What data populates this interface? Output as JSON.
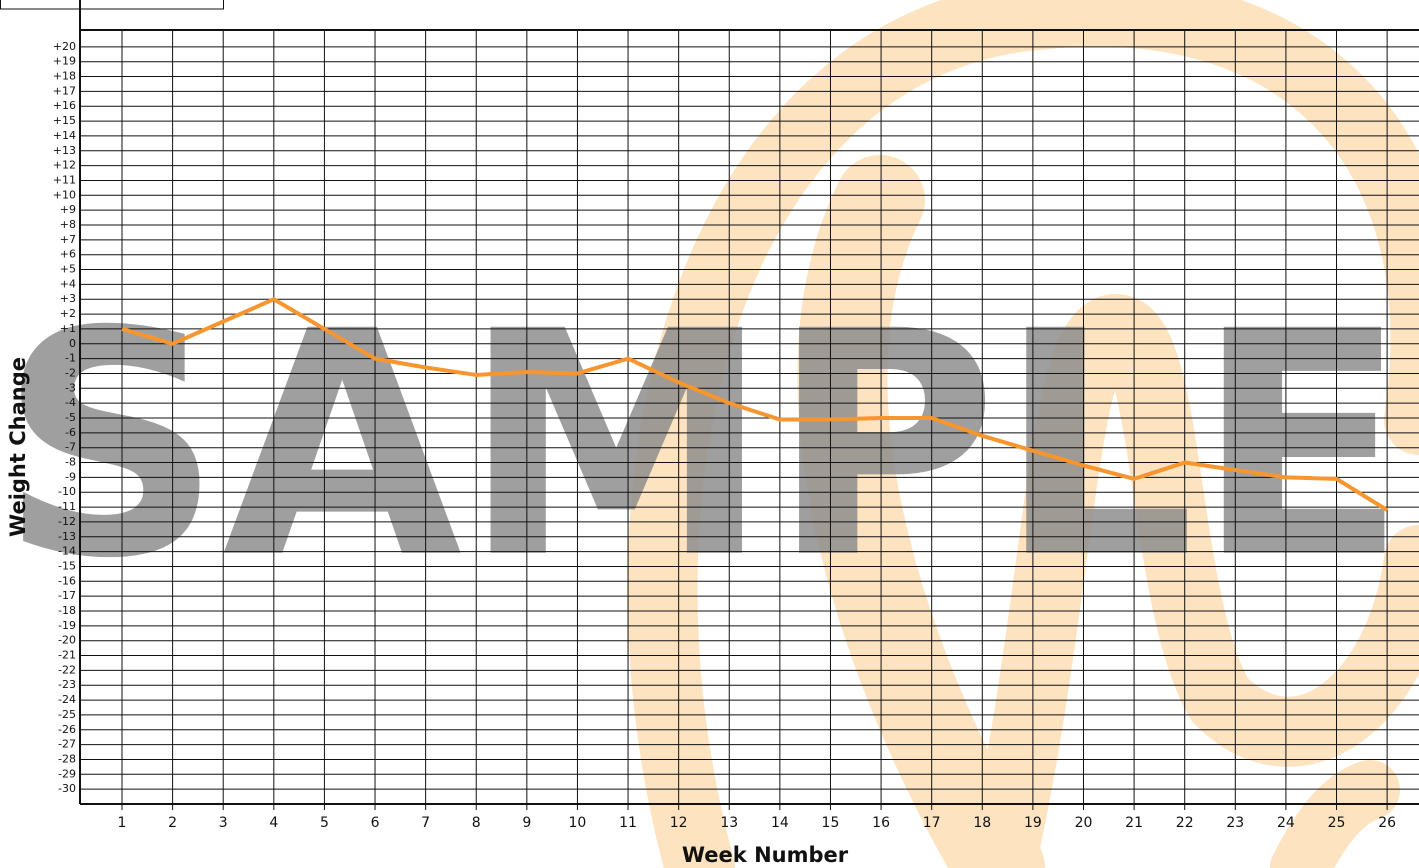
{
  "chart_data": {
    "type": "line",
    "watermark": "SAMPLE",
    "x_label": "Week Number",
    "y_label": "Weight Change",
    "x": [
      1,
      2,
      3,
      4,
      5,
      6,
      7,
      8,
      9,
      10,
      11,
      12,
      13,
      14,
      15,
      16,
      17,
      18,
      19,
      20,
      21,
      22,
      23,
      24,
      25,
      26
    ],
    "series": [
      {
        "color": "#f7952f",
        "values": [
          1,
          0,
          1.5,
          3,
          1,
          -1,
          -1.6,
          -2.1,
          -1.9,
          -2,
          -1,
          -2.6,
          -4,
          -5.1,
          -5.1,
          -5,
          -5,
          -6.2,
          -7.2,
          -8.2,
          -9.1,
          -8,
          -8.5,
          -9,
          -9.1,
          -11.2
        ]
      }
    ],
    "xlim": [
      0.17,
      26.63
    ],
    "ylim": [
      -31,
      21
    ],
    "xticks": [
      1,
      2,
      3,
      4,
      5,
      6,
      7,
      8,
      9,
      10,
      11,
      12,
      13,
      14,
      15,
      16,
      17,
      18,
      19,
      20,
      21,
      22,
      23,
      24,
      25,
      26
    ],
    "yticks": [
      {
        "value": 20,
        "label": "+20"
      },
      {
        "value": 19,
        "label": "+19"
      },
      {
        "value": 18,
        "label": "+18"
      },
      {
        "value": 17,
        "label": "+17"
      },
      {
        "value": 16,
        "label": "+16"
      },
      {
        "value": 15,
        "label": "+15"
      },
      {
        "value": 14,
        "label": "+14"
      },
      {
        "value": 13,
        "label": "+13"
      },
      {
        "value": 12,
        "label": "+12"
      },
      {
        "value": 11,
        "label": "+11"
      },
      {
        "value": 10,
        "label": "+10"
      },
      {
        "value": 9,
        "label": "+9"
      },
      {
        "value": 8,
        "label": "+8"
      },
      {
        "value": 7,
        "label": "+7"
      },
      {
        "value": 6,
        "label": "+6"
      },
      {
        "value": 5,
        "label": "+5"
      },
      {
        "value": 4,
        "label": "+4"
      },
      {
        "value": 3,
        "label": "+3"
      },
      {
        "value": 2,
        "label": "+2"
      },
      {
        "value": 1,
        "label": "+1"
      },
      0,
      -1,
      -2,
      -3,
      -4,
      -5,
      -6,
      -7,
      -8,
      -9,
      -10,
      -11,
      -12,
      -13,
      -14,
      -15,
      -16,
      -17,
      -18,
      -19,
      -20,
      -21,
      -22,
      -23,
      -24,
      -25,
      -26,
      -27,
      -28,
      -29,
      -30
    ],
    "grid": true
  }
}
